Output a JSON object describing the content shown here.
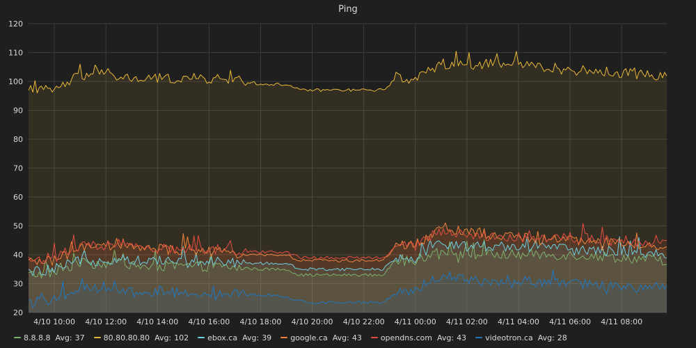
{
  "chart_data": {
    "type": "area",
    "title": "Ping",
    "ylim": [
      20,
      120
    ],
    "yticks": [
      "20",
      "30",
      "40",
      "50",
      "60",
      "70",
      "80",
      "90",
      "100",
      "110",
      "120"
    ],
    "x_range": [
      "4/10 09:00",
      "4/11 09:45"
    ],
    "xticks": [
      "4/10 10:00",
      "4/10 12:00",
      "4/10 14:00",
      "4/10 16:00",
      "4/10 18:00",
      "4/10 20:00",
      "4/10 22:00",
      "4/11 00:00",
      "4/11 02:00",
      "4/11 04:00",
      "4/11 06:00",
      "4/11 08:00"
    ],
    "grid": true,
    "legend_position": "bottom-left",
    "legend_avg_label": "Avg:",
    "sample_interval_minutes": 5,
    "series": [
      {
        "name": "8.8.8.8",
        "color": "#7eb26d",
        "avg": "37",
        "anchors": [
          [
            "4/10 09:00",
            33
          ],
          [
            "4/10 10:00",
            34
          ],
          [
            "4/10 11:00",
            37
          ],
          [
            "4/10 12:00",
            37
          ],
          [
            "4/10 12:45",
            38
          ],
          [
            "4/10 13:00",
            36
          ],
          [
            "4/10 14:00",
            36
          ],
          [
            "4/10 16:00",
            36
          ],
          [
            "4/10 18:00",
            35
          ],
          [
            "4/10 19:00",
            35
          ],
          [
            "4/10 19:30",
            33
          ],
          [
            "4/10 20:00",
            33
          ],
          [
            "4/10 22:00",
            33
          ],
          [
            "4/10 22:45",
            33
          ],
          [
            "4/10 23:15",
            38
          ],
          [
            "4/11 00:00",
            38
          ],
          [
            "4/11 01:00",
            42
          ],
          [
            "4/11 02:00",
            40
          ],
          [
            "4/11 04:00",
            40
          ],
          [
            "4/11 06:00",
            40
          ],
          [
            "4/11 08:00",
            39
          ],
          [
            "4/11 09:45",
            38
          ]
        ]
      },
      {
        "name": "80.80.80.80",
        "color": "#eab839",
        "avg": "102",
        "anchors": [
          [
            "4/10 09:00",
            97
          ],
          [
            "4/10 10:00",
            97
          ],
          [
            "4/10 11:00",
            102
          ],
          [
            "4/10 12:00",
            103
          ],
          [
            "4/10 12:45",
            101
          ],
          [
            "4/10 14:00",
            101
          ],
          [
            "4/10 16:00",
            101
          ],
          [
            "4/10 17:30",
            100
          ],
          [
            "4/10 18:00",
            99
          ],
          [
            "4/10 19:00",
            99
          ],
          [
            "4/10 19:30",
            97
          ],
          [
            "4/10 20:00",
            97
          ],
          [
            "4/10 22:00",
            97
          ],
          [
            "4/10 22:45",
            97
          ],
          [
            "4/10 23:15",
            101
          ],
          [
            "4/11 00:00",
            101
          ],
          [
            "4/11 01:00",
            106
          ],
          [
            "4/11 02:00",
            106
          ],
          [
            "4/11 04:00",
            106
          ],
          [
            "4/11 06:00",
            104
          ],
          [
            "4/11 08:00",
            103
          ],
          [
            "4/11 09:45",
            102
          ]
        ]
      },
      {
        "name": "ebox.ca",
        "color": "#6ed0e0",
        "avg": "39",
        "anchors": [
          [
            "4/10 09:00",
            34
          ],
          [
            "4/10 10:00",
            35
          ],
          [
            "4/10 11:00",
            38
          ],
          [
            "4/10 12:00",
            38
          ],
          [
            "4/10 12:45",
            39
          ],
          [
            "4/10 13:00",
            38
          ],
          [
            "4/10 14:00",
            38
          ],
          [
            "4/10 16:00",
            38
          ],
          [
            "4/10 18:00",
            37
          ],
          [
            "4/10 19:00",
            37
          ],
          [
            "4/10 19:30",
            35
          ],
          [
            "4/10 20:00",
            35
          ],
          [
            "4/10 22:00",
            35
          ],
          [
            "4/10 22:45",
            35
          ],
          [
            "4/10 23:15",
            39
          ],
          [
            "4/11 00:00",
            39
          ],
          [
            "4/11 01:00",
            44
          ],
          [
            "4/11 02:00",
            43
          ],
          [
            "4/11 04:00",
            43
          ],
          [
            "4/11 06:00",
            42
          ],
          [
            "4/11 08:00",
            41
          ],
          [
            "4/11 09:45",
            40
          ]
        ]
      },
      {
        "name": "google.ca",
        "color": "#ef843c",
        "avg": "43",
        "anchors": [
          [
            "4/10 09:00",
            37
          ],
          [
            "4/10 10:00",
            38
          ],
          [
            "4/10 11:00",
            42
          ],
          [
            "4/10 12:00",
            43
          ],
          [
            "4/10 12:45",
            44
          ],
          [
            "4/10 13:00",
            42
          ],
          [
            "4/10 14:00",
            42
          ],
          [
            "4/10 16:00",
            41
          ],
          [
            "4/10 18:00",
            40
          ],
          [
            "4/10 19:00",
            40
          ],
          [
            "4/10 19:30",
            38
          ],
          [
            "4/10 20:00",
            38
          ],
          [
            "4/10 22:00",
            38
          ],
          [
            "4/10 22:45",
            38
          ],
          [
            "4/10 23:15",
            43
          ],
          [
            "4/11 00:00",
            43
          ],
          [
            "4/11 01:00",
            50
          ],
          [
            "4/11 02:00",
            48
          ],
          [
            "4/11 04:00",
            46
          ],
          [
            "4/11 06:00",
            45
          ],
          [
            "4/11 08:00",
            44
          ],
          [
            "4/11 09:45",
            43
          ]
        ]
      },
      {
        "name": "opendns.com",
        "color": "#e24d42",
        "avg": "43",
        "anchors": [
          [
            "4/10 09:00",
            38
          ],
          [
            "4/10 10:00",
            39
          ],
          [
            "4/10 11:00",
            43
          ],
          [
            "4/10 12:00",
            43
          ],
          [
            "4/10 12:45",
            44
          ],
          [
            "4/10 13:00",
            43
          ],
          [
            "4/10 14:00",
            42
          ],
          [
            "4/10 16:00",
            42
          ],
          [
            "4/10 18:00",
            41
          ],
          [
            "4/10 19:00",
            41
          ],
          [
            "4/10 19:30",
            39
          ],
          [
            "4/10 20:00",
            39
          ],
          [
            "4/10 22:00",
            39
          ],
          [
            "4/10 22:45",
            39
          ],
          [
            "4/10 23:15",
            43
          ],
          [
            "4/11 00:00",
            43
          ],
          [
            "4/11 01:00",
            48
          ],
          [
            "4/11 02:00",
            47
          ],
          [
            "4/11 04:00",
            46
          ],
          [
            "4/11 06:00",
            46
          ],
          [
            "4/11 08:00",
            45
          ],
          [
            "4/11 09:45",
            44
          ]
        ]
      },
      {
        "name": "videotron.ca",
        "color": "#1f78c1",
        "avg": "28",
        "anchors": [
          [
            "4/10 09:00",
            23
          ],
          [
            "4/10 10:00",
            25
          ],
          [
            "4/10 11:00",
            28
          ],
          [
            "4/10 12:00",
            29
          ],
          [
            "4/10 12:45",
            28
          ],
          [
            "4/10 13:00",
            27
          ],
          [
            "4/10 14:00",
            27
          ],
          [
            "4/10 16:00",
            27
          ],
          [
            "4/10 18:00",
            26
          ],
          [
            "4/10 18:30",
            26
          ],
          [
            "4/10 19:00",
            25
          ],
          [
            "4/10 19:30",
            24
          ],
          [
            "4/10 20:00",
            23.5
          ],
          [
            "4/10 22:00",
            23.5
          ],
          [
            "4/10 22:45",
            23.5
          ],
          [
            "4/10 23:15",
            27
          ],
          [
            "4/11 00:00",
            28
          ],
          [
            "4/11 01:00",
            33
          ],
          [
            "4/11 02:00",
            31
          ],
          [
            "4/11 04:00",
            31
          ],
          [
            "4/11 06:00",
            30
          ],
          [
            "4/11 08:00",
            29
          ],
          [
            "4/11 09:45",
            29
          ]
        ]
      }
    ]
  }
}
